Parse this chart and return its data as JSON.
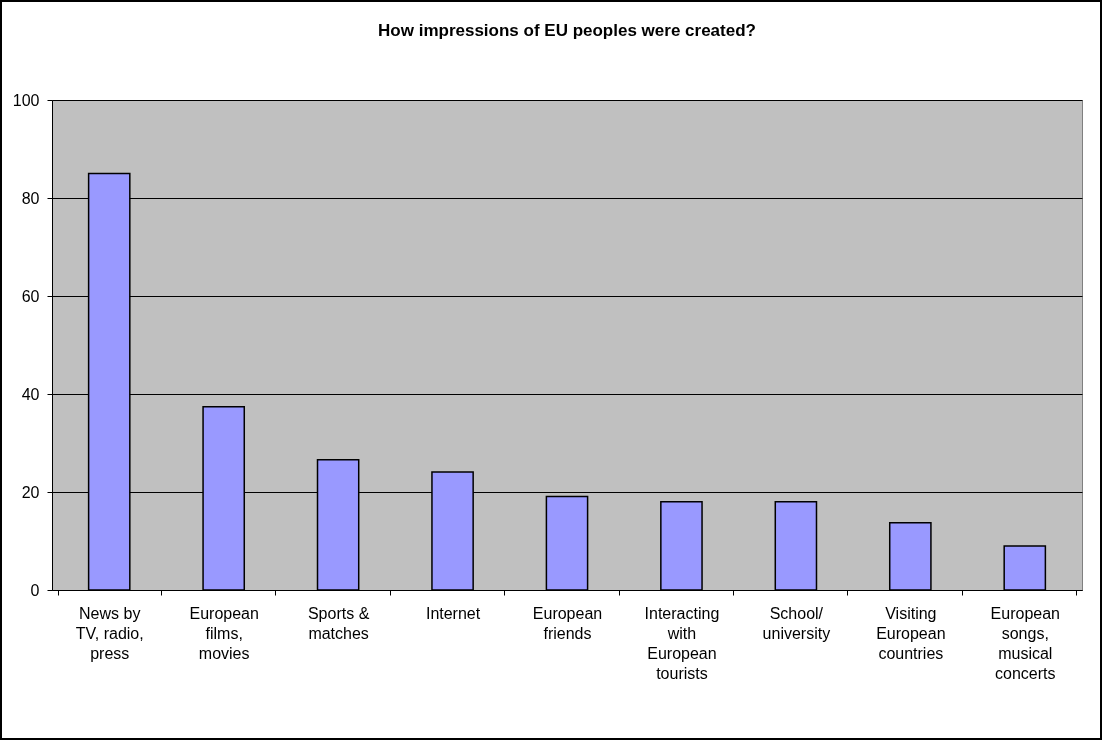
{
  "chart_data": {
    "type": "bar",
    "title": "How impressions of EU peoples were created?",
    "categories": [
      "News by TV, radio, press",
      "European films, movies",
      "Sports & matches",
      "Internet",
      "European friends",
      "Interacting with European tourists",
      "School/ university",
      "Visiting European countries",
      "European songs, musical concerts"
    ],
    "values": [
      85,
      37.4,
      26.6,
      24.1,
      19.1,
      18,
      18,
      13.7,
      9
    ],
    "color": "#9999ff",
    "ylim": [
      0,
      100
    ],
    "yticks": [
      0,
      20,
      40,
      60,
      80,
      100
    ],
    "grid": "y"
  }
}
